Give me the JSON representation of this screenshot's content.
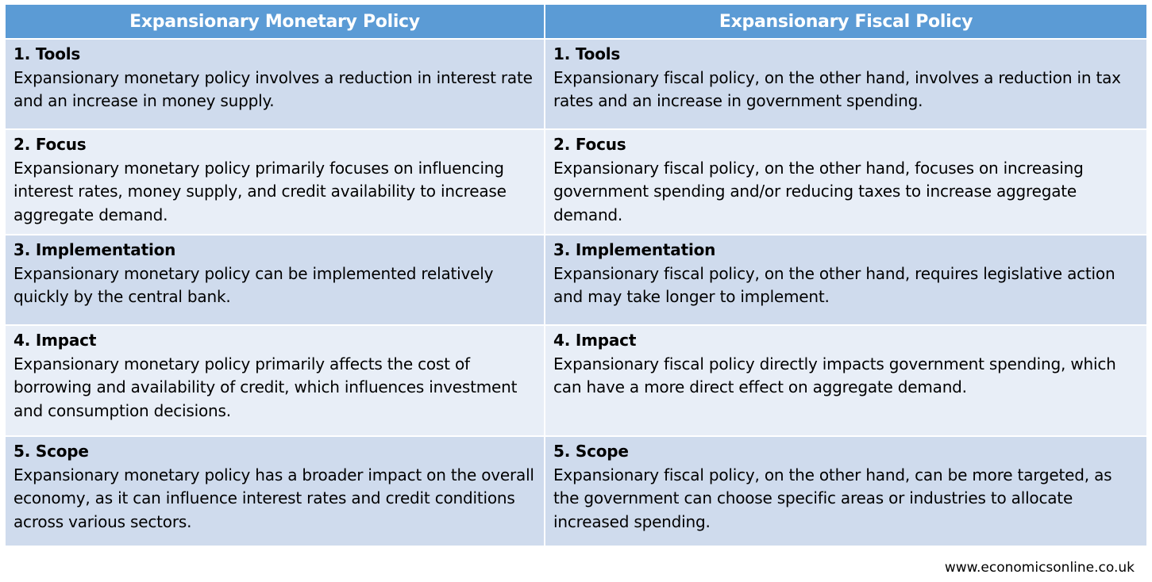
{
  "columns": [
    {
      "header": "Expansionary Monetary Policy"
    },
    {
      "header": "Expansionary Fiscal Policy"
    }
  ],
  "rows": [
    {
      "monetary": {
        "title": "1. Tools",
        "text": "Expansionary monetary policy involves a reduction in interest rate and an increase in money supply."
      },
      "fiscal": {
        "title": "1. Tools",
        "text": "Expansionary fiscal policy, on the other hand, involves a reduction in tax rates and an increase in government spending."
      }
    },
    {
      "monetary": {
        "title": "2. Focus",
        "text": "Expansionary monetary policy primarily focuses on influencing interest rates, money supply, and credit availability to increase aggregate demand."
      },
      "fiscal": {
        "title": "2. Focus",
        "text": "Expansionary fiscal policy, on the other hand, focuses on increasing government spending and/or reducing taxes to increase aggregate demand."
      }
    },
    {
      "monetary": {
        "title": "3. Implementation",
        "text": "Expansionary monetary policy can be implemented relatively quickly by the central bank."
      },
      "fiscal": {
        "title": "3. Implementation",
        "text": "Expansionary fiscal policy, on the other hand, requires legislative action and may take longer to implement."
      }
    },
    {
      "monetary": {
        "title": "4. Impact",
        "text": "Expansionary monetary policy primarily affects the cost of borrowing and availability of credit, which influences investment and consumption decisions."
      },
      "fiscal": {
        "title": "4. Impact",
        "text": "Expansionary fiscal policy directly impacts government spending, which can have a more direct effect on aggregate demand."
      }
    },
    {
      "monetary": {
        "title": "5. Scope",
        "text": "Expansionary monetary policy has a broader impact on the overall economy, as it can influence interest rates and credit conditions across various sectors."
      },
      "fiscal": {
        "title": "5. Scope",
        "text": "Expansionary fiscal policy, on the other hand, can be more targeted, as the government can choose specific areas or industries to allocate increased spending."
      }
    }
  ],
  "footer": "www.economicsonline.co.uk",
  "colors": {
    "header_bg": "#5b9bd5",
    "row_dark": "#cfdbed",
    "row_light": "#e8eef7"
  }
}
